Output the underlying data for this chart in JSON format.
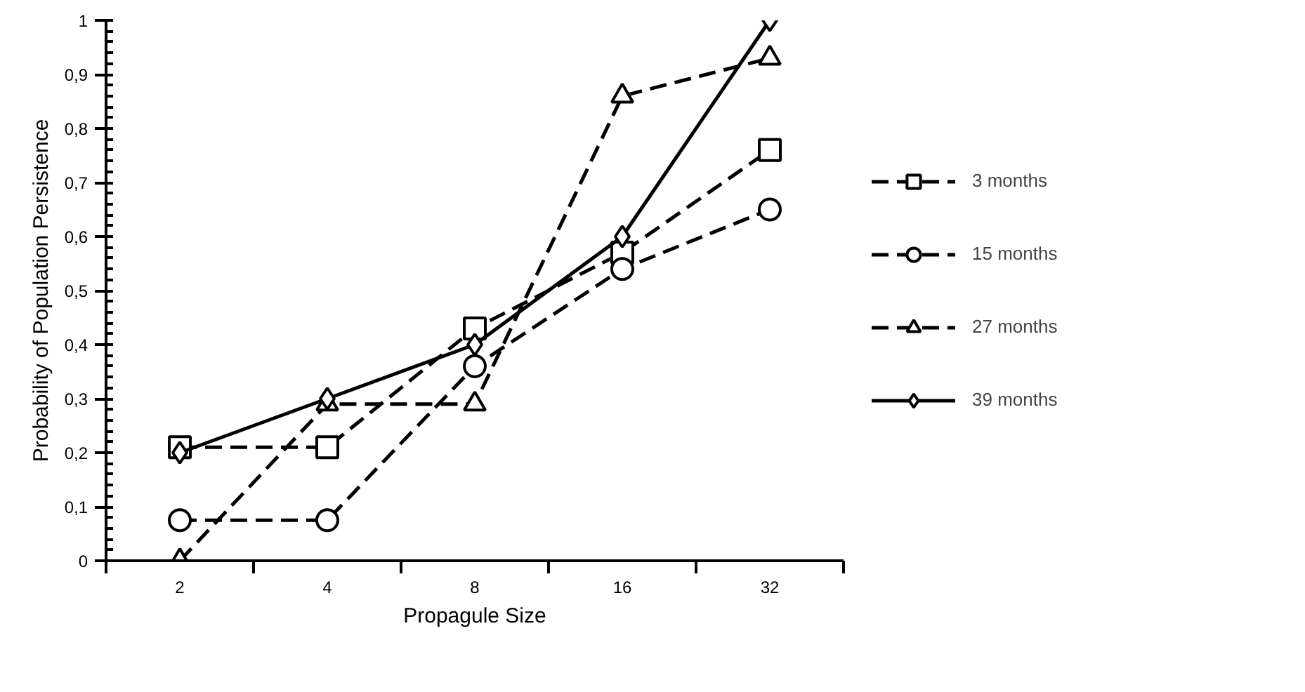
{
  "chart_data": {
    "type": "line",
    "xlabel": "Propagule Size",
    "ylabel": "Probability of Population Persistence",
    "categories": [
      "2",
      "4",
      "8",
      "16",
      "32"
    ],
    "ylim": [
      0,
      1
    ],
    "yticks": [
      0,
      {
        "value": 0.1,
        "label": "0,1"
      },
      {
        "value": 0.2,
        "label": "0,2"
      },
      {
        "value": 0.3,
        "label": "0,3"
      },
      {
        "value": 0.4,
        "label": "0,4"
      },
      {
        "value": 0.5,
        "label": "0,5"
      },
      {
        "value": 0.6,
        "label": "0,6"
      },
      {
        "value": 0.7,
        "label": "0,7"
      },
      {
        "value": 0.8,
        "label": "0,8"
      },
      {
        "value": 0.9,
        "label": "0,9"
      },
      1
    ],
    "grid": false,
    "legend": "right",
    "series": [
      {
        "name": "3 months",
        "color": "#000000",
        "marker": "square",
        "line_style": "dashed",
        "values": [
          0.21,
          0.21,
          0.43,
          0.57,
          0.76
        ]
      },
      {
        "name": "15 months",
        "color": "#000000",
        "marker": "circle",
        "line_style": "dashed",
        "values": [
          0.075,
          0.075,
          0.36,
          0.54,
          0.65
        ]
      },
      {
        "name": "27 months",
        "color": "#000000",
        "marker": "triangle",
        "line_style": "dashed",
        "values": [
          0,
          0.29,
          0.29,
          0.86,
          0.93
        ]
      },
      {
        "name": "39 months",
        "color": "#000000",
        "marker": "diamond",
        "line_style": "solid",
        "values": [
          0.2,
          0.3,
          0.4,
          0.6,
          1.0
        ]
      }
    ]
  }
}
